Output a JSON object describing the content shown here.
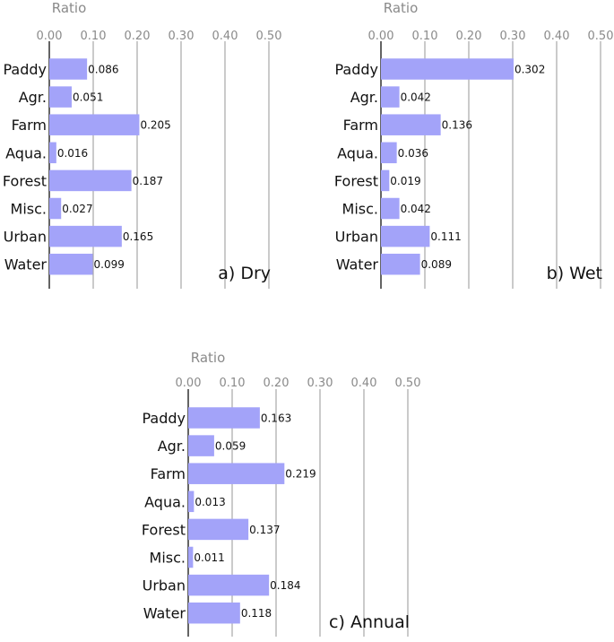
{
  "colors": {
    "bar": "#a3a3f9",
    "grid": "#a8a8a8",
    "axis_text": "#8a8a8a"
  },
  "chart_data": [
    {
      "type": "bar",
      "orientation": "horizontal",
      "panel_label": "a) Dry",
      "xlabel": "Ratio",
      "xlim": [
        0,
        0.5
      ],
      "xticks": [
        "0.00",
        "0.10",
        "0.20",
        "0.30",
        "0.40",
        "0.50"
      ],
      "categories": [
        "Paddy",
        "Agr.",
        "Farm",
        "Aqua.",
        "Forest",
        "Misc.",
        "Urban",
        "Water"
      ],
      "values": [
        0.086,
        0.051,
        0.205,
        0.016,
        0.187,
        0.027,
        0.165,
        0.099
      ],
      "value_labels": [
        "0.086",
        "0.051",
        "0.205",
        "0.016",
        "0.187",
        "0.027",
        "0.165",
        "0.099"
      ],
      "grid": true
    },
    {
      "type": "bar",
      "orientation": "horizontal",
      "panel_label": "b) Wet",
      "xlabel": "Ratio",
      "xlim": [
        0,
        0.5
      ],
      "xticks": [
        "0.00",
        "0.10",
        "0.20",
        "0.30",
        "0.40",
        "0.50"
      ],
      "categories": [
        "Paddy",
        "Agr.",
        "Farm",
        "Aqua.",
        "Forest",
        "Misc.",
        "Urban",
        "Water"
      ],
      "values": [
        0.302,
        0.042,
        0.136,
        0.036,
        0.019,
        0.042,
        0.111,
        0.089
      ],
      "value_labels": [
        "0.302",
        "0.042",
        "0.136",
        "0.036",
        "0.019",
        "0.042",
        "0.111",
        "0.089"
      ],
      "grid": true
    },
    {
      "type": "bar",
      "orientation": "horizontal",
      "panel_label": "c) Annual",
      "xlabel": "Ratio",
      "xlim": [
        0,
        0.5
      ],
      "xticks": [
        "0.00",
        "0.10",
        "0.20",
        "0.30",
        "0.40",
        "0.50"
      ],
      "categories": [
        "Paddy",
        "Agr.",
        "Farm",
        "Aqua.",
        "Forest",
        "Misc.",
        "Urban",
        "Water"
      ],
      "values": [
        0.163,
        0.059,
        0.219,
        0.013,
        0.137,
        0.011,
        0.184,
        0.118
      ],
      "value_labels": [
        "0.163",
        "0.059",
        "0.219",
        "0.013",
        "0.137",
        "0.011",
        "0.184",
        "0.118"
      ],
      "grid": true
    }
  ]
}
